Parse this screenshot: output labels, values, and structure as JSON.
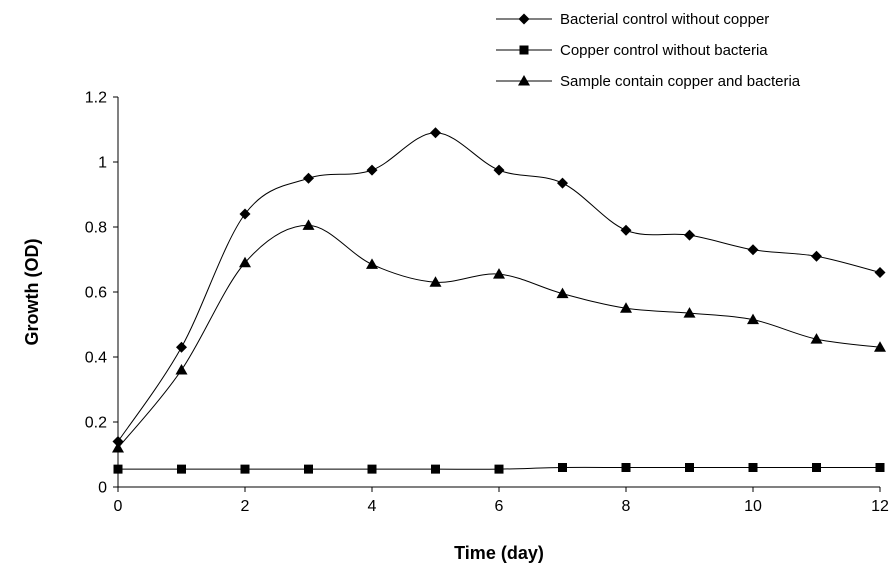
{
  "chart_data": {
    "type": "line",
    "title": "",
    "xlabel": "Time (day)",
    "ylabel": "Growth (OD)",
    "xlim": [
      0,
      12
    ],
    "ylim": [
      0,
      1.2
    ],
    "x_ticks": [
      "0",
      "2",
      "4",
      "6",
      "8",
      "10",
      "12"
    ],
    "y_ticks": [
      "0",
      "0.2",
      "0.4",
      "0.6",
      "0.8",
      "1",
      "1.2"
    ],
    "grid": false,
    "smooth": true,
    "legend_position": "top-right",
    "x": [
      0,
      1,
      2,
      3,
      4,
      5,
      6,
      7,
      8,
      9,
      10,
      11,
      12
    ],
    "series": [
      {
        "name": "Bacterial control without copper",
        "marker": "diamond",
        "color": "#000000",
        "values": [
          0.14,
          0.43,
          0.84,
          0.95,
          0.975,
          1.09,
          0.975,
          0.935,
          0.79,
          0.775,
          0.73,
          0.71,
          0.66
        ]
      },
      {
        "name": "Copper control without bacteria",
        "marker": "square",
        "color": "#000000",
        "values": [
          0.055,
          0.055,
          0.055,
          0.055,
          0.055,
          0.055,
          0.055,
          0.06,
          0.06,
          0.06,
          0.06,
          0.06,
          0.06
        ]
      },
      {
        "name": "Sample contain copper and bacteria",
        "marker": "triangle",
        "color": "#000000",
        "values": [
          0.12,
          0.36,
          0.69,
          0.805,
          0.685,
          0.63,
          0.655,
          0.595,
          0.55,
          0.535,
          0.515,
          0.455,
          0.43
        ]
      }
    ]
  }
}
